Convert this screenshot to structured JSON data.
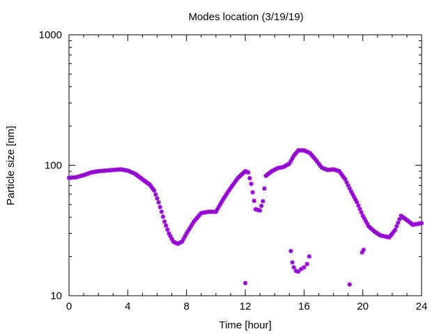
{
  "chart_data": {
    "type": "scatter",
    "title": "Modes location (3/19/19)",
    "xlabel": "Time [hour]",
    "ylabel": "Particle size [nm]",
    "xlim": [
      0,
      24
    ],
    "ylim": [
      10,
      1000
    ],
    "yscale": "log",
    "grid": false,
    "legend": "none",
    "x_ticks": [
      {
        "value": 0,
        "label": "0"
      },
      {
        "value": 4,
        "label": "4"
      },
      {
        "value": 8,
        "label": "8"
      },
      {
        "value": 12,
        "label": "12"
      },
      {
        "value": 16,
        "label": "16"
      },
      {
        "value": 20,
        "label": "20"
      },
      {
        "value": 24,
        "label": "24"
      }
    ],
    "y_ticks": [
      {
        "value": 10,
        "label": "10"
      },
      {
        "value": 100,
        "label": "100"
      },
      {
        "value": 1000,
        "label": "1000"
      }
    ],
    "marker_color": "#9400d3",
    "series": [
      {
        "mode": "primary",
        "points": [
          [
            0.0,
            80
          ],
          [
            0.5,
            81
          ],
          [
            1.0,
            84
          ],
          [
            1.5,
            88
          ],
          [
            2.0,
            90
          ],
          [
            2.5,
            91
          ],
          [
            3.0,
            92
          ],
          [
            3.5,
            93
          ],
          [
            4.0,
            91
          ],
          [
            4.5,
            86
          ],
          [
            5.0,
            78
          ],
          [
            5.5,
            71
          ],
          [
            5.8,
            64
          ],
          [
            6.1,
            52
          ],
          [
            6.3,
            44
          ],
          [
            6.5,
            37
          ],
          [
            6.8,
            30
          ],
          [
            7.1,
            26
          ],
          [
            7.4,
            25
          ],
          [
            7.7,
            26
          ],
          [
            8.0,
            30
          ],
          [
            8.5,
            37
          ],
          [
            9.0,
            43
          ],
          [
            9.5,
            44
          ],
          [
            10.0,
            44
          ],
          [
            10.5,
            55
          ],
          [
            11.0,
            67
          ],
          [
            11.5,
            80
          ],
          [
            12.0,
            90
          ],
          [
            12.2,
            88
          ],
          [
            12.4,
            72
          ],
          [
            12.7,
            46
          ],
          [
            13.0,
            45
          ],
          [
            13.2,
            53
          ],
          [
            13.4,
            83
          ],
          [
            13.8,
            90
          ],
          [
            14.2,
            95
          ],
          [
            14.6,
            97
          ],
          [
            15.0,
            103
          ],
          [
            15.3,
            118
          ],
          [
            15.6,
            130
          ],
          [
            16.0,
            130
          ],
          [
            16.4,
            124
          ],
          [
            16.8,
            110
          ],
          [
            17.2,
            96
          ],
          [
            17.6,
            92
          ],
          [
            18.0,
            93
          ],
          [
            18.4,
            90
          ],
          [
            18.8,
            78
          ],
          [
            19.2,
            63
          ],
          [
            19.6,
            52
          ],
          [
            20.0,
            41
          ],
          [
            20.4,
            34
          ],
          [
            20.8,
            31
          ],
          [
            21.2,
            29
          ],
          [
            21.8,
            28
          ],
          [
            22.2,
            32
          ],
          [
            22.6,
            41
          ],
          [
            23.0,
            38
          ],
          [
            23.4,
            35
          ],
          [
            24.0,
            36
          ]
        ]
      },
      {
        "mode": "secondary",
        "points": [
          [
            12.0,
            12.5
          ],
          [
            15.1,
            22
          ],
          [
            15.2,
            18
          ],
          [
            15.3,
            16.5
          ],
          [
            15.45,
            15.5
          ],
          [
            15.6,
            15.3
          ],
          [
            15.8,
            16.0
          ],
          [
            16.0,
            16.5
          ],
          [
            16.2,
            17.5
          ],
          [
            16.35,
            20
          ],
          [
            19.1,
            12.2
          ],
          [
            19.95,
            21.5
          ],
          [
            20.05,
            22.5
          ]
        ]
      }
    ]
  }
}
